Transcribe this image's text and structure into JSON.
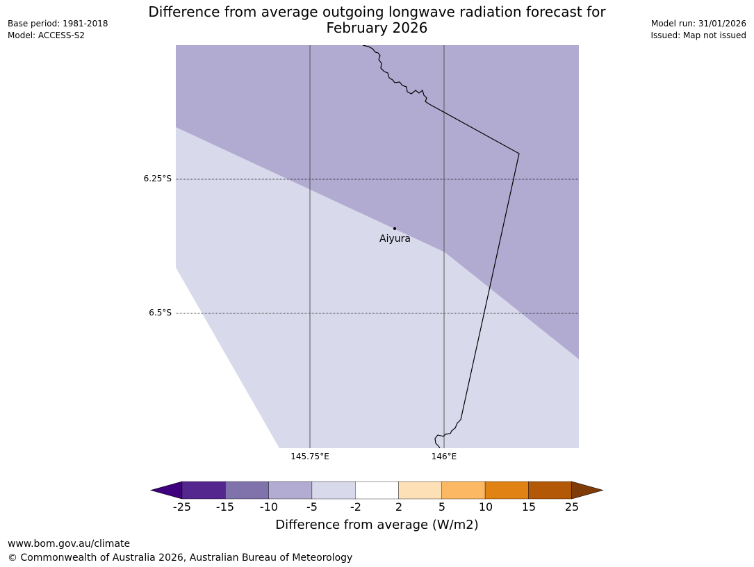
{
  "title_line1": "Difference from average outgoing longwave radiation forecast for",
  "title_line2": "February 2026",
  "meta_left": {
    "base_period": "Base period: 1981-2018",
    "model": "Model: ACCESS-S2"
  },
  "meta_right": {
    "model_run": "Model run: 31/01/2026",
    "issued": "Issued: Map not issued"
  },
  "map": {
    "lat_labels": [
      "6.25°S",
      "6.5°S"
    ],
    "lon_labels": [
      "145.75°E",
      "146°E"
    ],
    "place": "Aiyura"
  },
  "colorbar": {
    "ticks": [
      "-25",
      "-15",
      "-10",
      "-5",
      "-2",
      "2",
      "5",
      "10",
      "15",
      "25"
    ],
    "colors": [
      "#3f007d",
      "#54278f",
      "#8073ac",
      "#b2abd2",
      "#d8daeb",
      "#ffffff",
      "#fee0b6",
      "#fdb863",
      "#e08214",
      "#b35806",
      "#7f3b08"
    ],
    "label": "Difference from average (W/m2)"
  },
  "footer": {
    "url": "www.bom.gov.au/climate",
    "copyright": "© Commonwealth of Australia 2026, Australian Bureau of Meteorology"
  }
}
